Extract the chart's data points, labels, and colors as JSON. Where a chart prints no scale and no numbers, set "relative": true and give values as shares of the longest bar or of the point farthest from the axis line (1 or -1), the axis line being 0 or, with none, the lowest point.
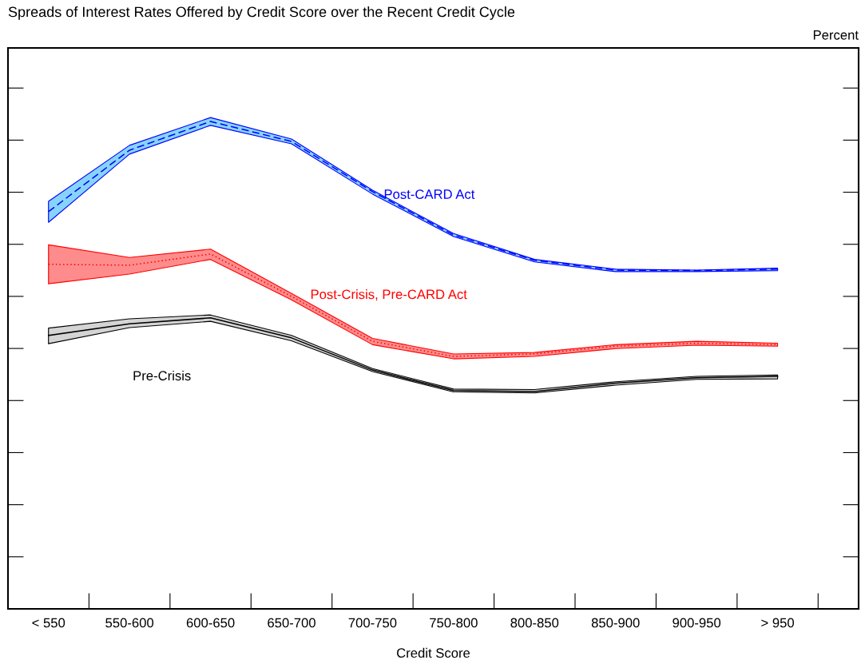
{
  "chart_data": {
    "type": "line",
    "title": "Spreads of Interest Rates Offered by Credit Score over the Recent Credit Cycle",
    "xlabel": "Credit Score",
    "annotations": [
      "Percent"
    ],
    "relative": true,
    "grid": false,
    "legend": false,
    "categories": [
      "< 550",
      "550-600",
      "600-650",
      "650-700",
      "700-750",
      "750-800",
      "800-850",
      "850-900",
      "900-950",
      "> 950"
    ],
    "series": [
      {
        "name": "Post-CARD Act",
        "color": "#0000ff",
        "line_style": "dashed",
        "values": [
          0.815,
          0.941,
          1.0,
          0.959,
          0.856,
          0.767,
          0.715,
          0.695,
          0.694,
          0.697
        ],
        "upper": [
          0.836,
          0.951,
          1.008,
          0.964,
          0.859,
          0.77,
          0.717,
          0.697,
          0.695,
          0.699
        ],
        "lower": [
          0.793,
          0.933,
          0.992,
          0.954,
          0.851,
          0.764,
          0.712,
          0.692,
          0.692,
          0.694
        ]
      },
      {
        "name": "Post-Crisis, Pre-CARD Act",
        "color": "#ff0000",
        "line_style": "dotted",
        "values": [
          0.707,
          0.705,
          0.728,
          0.641,
          0.549,
          0.518,
          0.523,
          0.539,
          0.545,
          0.542
        ],
        "upper": [
          0.747,
          0.721,
          0.738,
          0.647,
          0.555,
          0.523,
          0.526,
          0.542,
          0.549,
          0.545
        ],
        "lower": [
          0.667,
          0.687,
          0.717,
          0.634,
          0.542,
          0.513,
          0.518,
          0.534,
          0.541,
          0.539
        ]
      },
      {
        "name": "Pre-Crisis",
        "color": "#000000",
        "line_style": "solid",
        "values": [
          0.561,
          0.585,
          0.597,
          0.556,
          0.49,
          0.448,
          0.446,
          0.463,
          0.474,
          0.477
        ],
        "upper": [
          0.576,
          0.595,
          0.603,
          0.561,
          0.493,
          0.451,
          0.45,
          0.466,
          0.477,
          0.48
        ],
        "lower": [
          0.544,
          0.577,
          0.59,
          0.55,
          0.487,
          0.445,
          0.443,
          0.459,
          0.471,
          0.472
        ]
      }
    ]
  }
}
